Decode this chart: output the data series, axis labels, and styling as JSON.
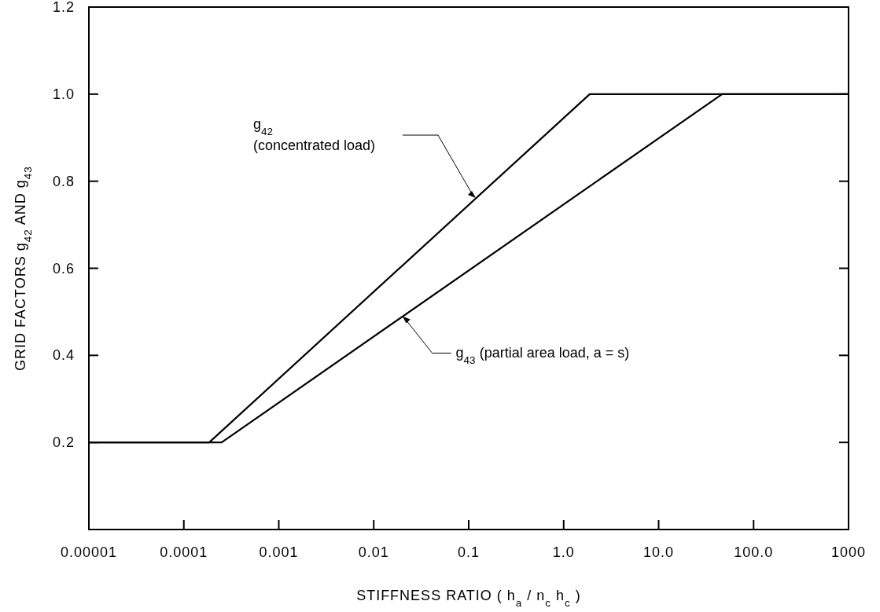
{
  "chart_data": {
    "type": "line",
    "xlabel": "STIFFNESS RATIO ( h$_{a}$ / n$_{c}$ h$_{c}$ )",
    "ylabel": "GRID FACTORS g$_{42}$ AND g$_{43}$",
    "log": "x",
    "xlim": [
      1e-05,
      1000
    ],
    "ylim": [
      0,
      1.2
    ],
    "xticks": [
      {
        "value": 1e-05,
        "label": "0.00001"
      },
      0.0001,
      0.001,
      0.01,
      0.1,
      {
        "value": 1,
        "label": "1.0"
      },
      {
        "value": 10,
        "label": "10.0"
      },
      {
        "value": 100,
        "label": "100.0"
      },
      1000
    ],
    "yticks": [
      0.2,
      0.4,
      0.6,
      0.8,
      {
        "value": 1,
        "label": "1.0"
      },
      1.2
    ],
    "series": [
      {
        "color": "#000000",
        "x": [
          1e-05,
          0.000185,
          1.88,
          1000
        ],
        "values": [
          0.2,
          0.2,
          1.0,
          1.0
        ]
      },
      {
        "color": "#000000",
        "x": [
          1e-05,
          0.00025,
          46.6,
          1000
        ],
        "values": [
          0.2,
          0.2,
          1.0,
          1.0
        ]
      }
    ],
    "annotations": [
      "g$_{42}$\n(concentrated load)",
      {
        "text": "g$_{43}$ (partial area load, a = s)",
        "x": 0.02,
        "y": 0.49
      }
    ]
  }
}
